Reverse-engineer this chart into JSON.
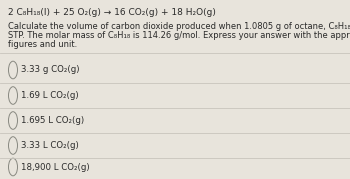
{
  "background_color": "#e8e4dc",
  "title_line": "2 C₈H₁₈(l) + 25 O₂(g) → 16 CO₂(g) + 18 H₂O(g)",
  "body_line1": "Calculate the volume of carbon dioxide produced when 1.0805 g of octane, C₈H₁₈(l), combusts at",
  "body_line2": "STP. The molar mass of C₈H₁₈ is 114.26 g/mol. Express your answer with the appropriate significant",
  "body_line3": "figures and unit.",
  "options": [
    "3.33 g CO₂(g)",
    "1.69 L CO₂(g)",
    "1.695 L CO₂(g)",
    "3.33 L CO₂(g)",
    "18,900 L CO₂(g)"
  ],
  "text_color": "#2a2a2a",
  "line_color": "#c8c4bc",
  "font_size_title": 6.5,
  "font_size_body": 6.0,
  "font_size_options": 6.2,
  "circle_color": "#888880"
}
